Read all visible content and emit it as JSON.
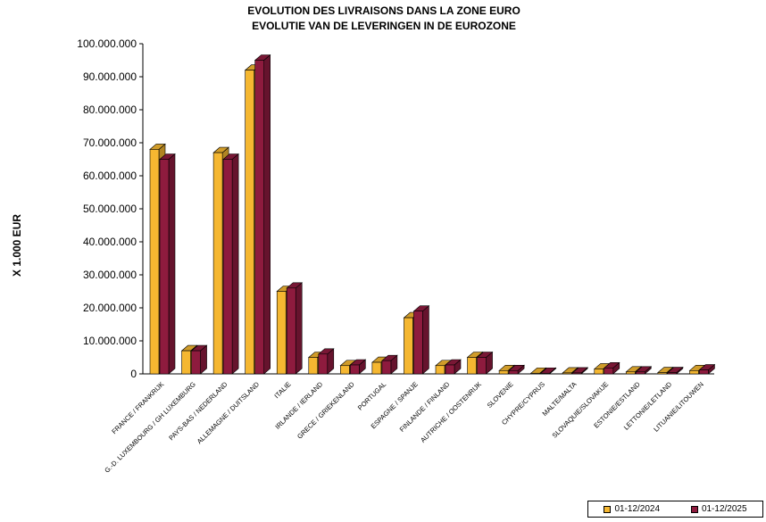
{
  "chart_data": {
    "type": "bar",
    "title": "EVOLUTION DES LIVRAISONS DANS LA ZONE EURO",
    "subtitle": "EVOLUTIE VAN DE LEVERINGEN IN  DE EUROZONE",
    "ylabel": "X 1.000 EUR",
    "xlabel": "",
    "ylim": [
      0,
      100000000
    ],
    "yticks": [
      0,
      10000000,
      20000000,
      30000000,
      40000000,
      50000000,
      60000000,
      70000000,
      80000000,
      90000000,
      100000000
    ],
    "ytick_labels": [
      "0",
      "10.000.000",
      "20.000.000",
      "30.000.000",
      "40.000.000",
      "50.000.000",
      "60.000.000",
      "70.000.000",
      "80.000.000",
      "90.000.000",
      "100.000.000"
    ],
    "categories": [
      "FRANCE / FRANKRIJK",
      "G.-D. LUXEMBOURG / GH LUXEMBURG",
      "PAYS-BAS / NEDERLAND",
      "ALLEMAGNE / DUITSLAND",
      "ITALIE",
      "IRLANDE / IERLAND",
      "GRECE / GRIEKENLAND",
      "PORTUGAL",
      "ESPAGNE / SPANJE",
      "FINLANDE / FINLAND",
      "AUTRICHE / OOSTENRIJK",
      "SLOVENIE",
      "CHYPRE/CYPRUS",
      "MALTE/MALTA",
      "SLOVAQUIE/SLOVAKIJE",
      "ESTONIE/ESTLAND",
      "LETTONIE/LETLAND",
      "LITUANIE/LITOUWEN"
    ],
    "series": [
      {
        "name": "01-12/2024",
        "color": "#F5B731",
        "values": [
          68000000,
          7000000,
          67000000,
          92000000,
          25000000,
          5000000,
          2500000,
          3500000,
          17000000,
          2500000,
          5000000,
          1000000,
          200000,
          300000,
          1500000,
          600000,
          400000,
          1000000
        ]
      },
      {
        "name": "01-12/2025",
        "color": "#8E1B3E",
        "values": [
          65000000,
          7000000,
          65000000,
          95000000,
          26000000,
          6000000,
          2700000,
          4000000,
          19000000,
          2700000,
          5000000,
          1000000,
          200000,
          300000,
          1800000,
          600000,
          400000,
          1200000
        ]
      }
    ],
    "legend": "bottom-right",
    "grid": false
  }
}
